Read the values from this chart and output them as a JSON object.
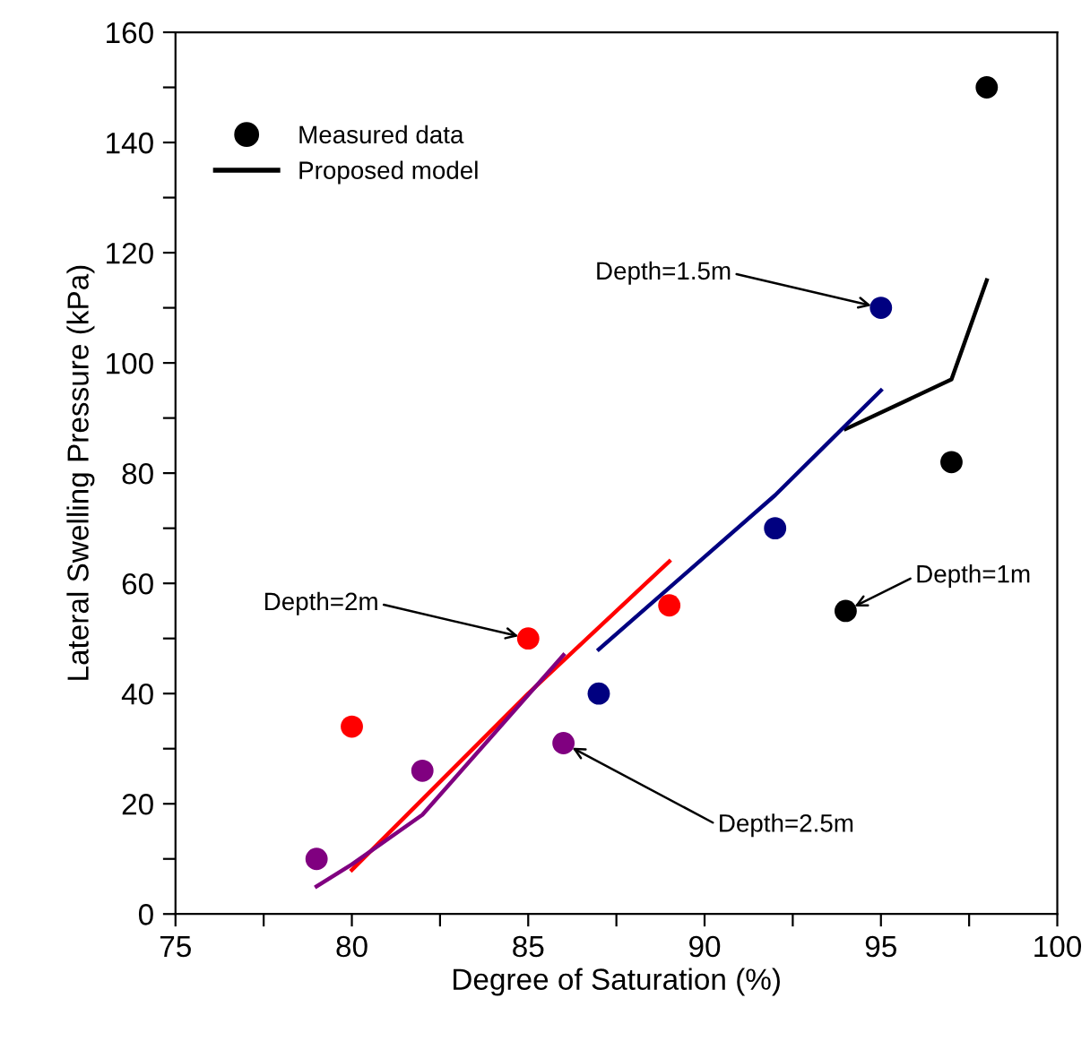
{
  "chart_data": {
    "type": "line",
    "xlabel": "Degree of Saturation (%)",
    "ylabel": "Lateral Swelling Pressure (kPa)",
    "xlim": [
      75,
      100
    ],
    "ylim": [
      0,
      160
    ],
    "xticks": [
      75,
      {
        "value": 77.5,
        "label": null
      },
      80,
      {
        "value": 82.5,
        "label": null
      },
      85,
      {
        "value": 87.5,
        "label": null
      },
      90,
      {
        "value": 92.5,
        "label": null
      },
      95,
      {
        "value": 97.5,
        "label": null
      },
      100
    ],
    "yticks": [
      0,
      {
        "value": 10,
        "label": null
      },
      20,
      {
        "value": 30,
        "label": null
      },
      40,
      {
        "value": 50,
        "label": null
      },
      60,
      {
        "value": 70,
        "label": null
      },
      80,
      {
        "value": 90,
        "label": null
      },
      100,
      {
        "value": 110,
        "label": null
      },
      120,
      {
        "value": 130,
        "label": null
      },
      140,
      {
        "value": 150,
        "label": null
      },
      160
    ],
    "grid": false,
    "legend": "top left",
    "series": [
      {
        "name": "Measured data",
        "type": "scatter",
        "marker": "circle",
        "color": "#000000",
        "x": [
          94,
          97,
          98
        ],
        "values": [
          55,
          82,
          150
        ]
      },
      {
        "name": "Proposed model",
        "color": "#000000",
        "x": [
          94,
          97,
          98
        ],
        "values": [
          88,
          97,
          115
        ]
      },
      {
        "type": "scatter",
        "marker": "circle",
        "color": "#000080",
        "x": [
          87,
          92,
          95
        ],
        "values": [
          40,
          70,
          110
        ]
      },
      {
        "color": "#000080",
        "x": [
          87,
          92,
          95
        ],
        "values": [
          48,
          76,
          95
        ]
      },
      {
        "type": "scatter",
        "marker": "circle",
        "color": "#ff0000",
        "x": [
          80,
          85,
          89
        ],
        "values": [
          34,
          50,
          56
        ]
      },
      {
        "color": "#ff0000",
        "x": [
          80,
          85,
          89
        ],
        "values": [
          8,
          40,
          64
        ]
      },
      {
        "type": "scatter",
        "marker": "circle",
        "color": "#800080",
        "x": [
          79,
          82,
          86
        ],
        "values": [
          10,
          26,
          31
        ]
      },
      {
        "color": "#800080",
        "x": [
          79,
          80,
          82,
          86
        ],
        "values": [
          5,
          9,
          18,
          47
        ]
      }
    ],
    "annotations": [
      {
        "text": "Depth=1.5m",
        "x": 95,
        "y": 110
      },
      {
        "text": "Depth=1m",
        "x": 94,
        "y": 55
      },
      {
        "text": "Depth=2m",
        "x": 85,
        "y": 50
      },
      {
        "text": "Depth=2.5m",
        "x": 86,
        "y": 31
      }
    ]
  }
}
